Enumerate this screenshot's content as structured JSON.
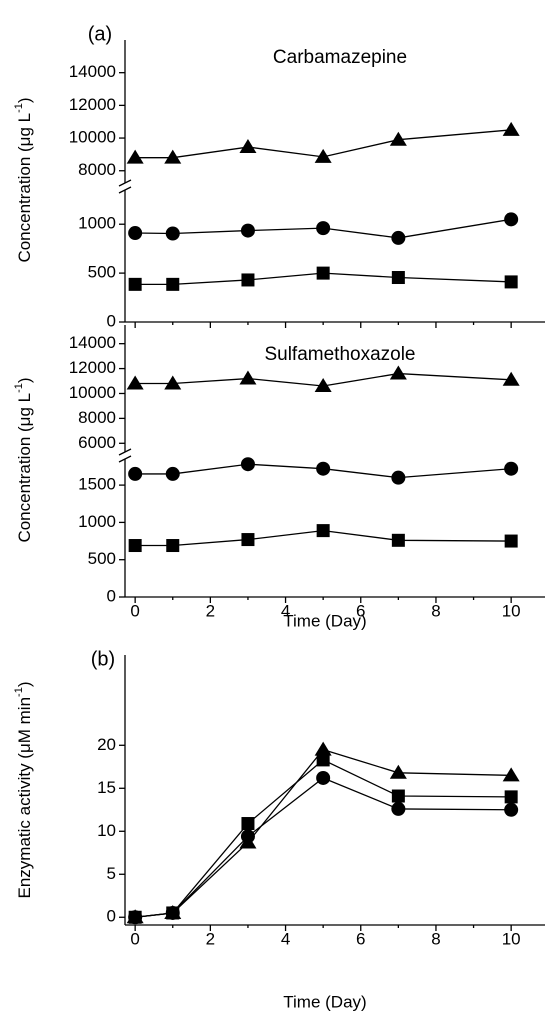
{
  "chart_data": [
    {
      "type": "line",
      "panel_label": "(a)",
      "title": "Carbamazepine",
      "ylabel": {
        "text": "Concentration (μg L",
        "sup": "-1",
        "end": ")"
      },
      "x": [
        0,
        1,
        3,
        5,
        7,
        10
      ],
      "xlim": [
        -0.27,
        10.9
      ],
      "xticks": [
        0,
        2,
        4,
        6,
        8,
        10
      ],
      "show_xtick_labels": false,
      "ylim": [
        0,
        1350
      ],
      "yticks": [
        0,
        500,
        1000
      ],
      "y2lim": [
        7250,
        16000
      ],
      "y2ticks": [
        8000,
        10000,
        12000,
        14000
      ],
      "series": [
        {
          "marker": "triangle",
          "color": "#000000",
          "axis": "y2",
          "values": [
            8800,
            8800,
            9450,
            8850,
            9900,
            10500
          ]
        },
        {
          "marker": "circle",
          "color": "#000000",
          "values": [
            910,
            905,
            935,
            960,
            860,
            1050
          ]
        },
        {
          "marker": "square",
          "color": "#000000",
          "values": [
            385,
            385,
            430,
            500,
            455,
            410
          ]
        }
      ]
    },
    {
      "type": "line",
      "title": "Sulfamethoxazole",
      "xlabel": "Time (Day)",
      "ylabel": {
        "text": "Concentration (μg L",
        "sup": "-1",
        "end": ")"
      },
      "x": [
        0,
        1,
        3,
        5,
        7,
        10
      ],
      "xlim": [
        -0.27,
        10.9
      ],
      "xticks": [
        0,
        2,
        4,
        6,
        8,
        10
      ],
      "show_xtick_labels": true,
      "ylim": [
        0,
        1850
      ],
      "yticks": [
        0,
        500,
        1000,
        1500
      ],
      "y2lim": [
        5300,
        15500
      ],
      "y2ticks": [
        6000,
        8000,
        10000,
        12000,
        14000
      ],
      "series": [
        {
          "marker": "triangle",
          "color": "#000000",
          "axis": "y2",
          "values": [
            10800,
            10800,
            11200,
            10600,
            11600,
            11100
          ]
        },
        {
          "marker": "circle",
          "color": "#000000",
          "values": [
            1650,
            1650,
            1780,
            1720,
            1600,
            1720
          ]
        },
        {
          "marker": "square",
          "color": "#000000",
          "values": [
            690,
            690,
            770,
            890,
            760,
            750
          ]
        }
      ]
    },
    {
      "type": "line",
      "panel_label": "(b)",
      "xlabel": "Time (Day)",
      "ylabel": {
        "text": "Enzymatic activity (μM min",
        "sup": "-1",
        "end": ")"
      },
      "x": [
        0,
        1,
        3,
        5,
        7,
        10
      ],
      "xlim": [
        -0.27,
        10.9
      ],
      "xticks": [
        0,
        2,
        4,
        6,
        8,
        10
      ],
      "show_xtick_labels": true,
      "ylim": [
        -0.9,
        30.5
      ],
      "yticks": [
        0,
        5,
        10,
        15,
        20
      ],
      "series": [
        {
          "marker": "square",
          "color": "#000000",
          "values": [
            0,
            0.5,
            10.9,
            18.3,
            14.1,
            14.0
          ]
        },
        {
          "marker": "circle",
          "color": "#000000",
          "values": [
            0,
            0.5,
            9.4,
            16.2,
            12.6,
            12.5
          ]
        },
        {
          "marker": "triangle",
          "color": "#000000",
          "values": [
            0,
            0.5,
            8.7,
            19.5,
            16.8,
            16.5
          ]
        }
      ]
    }
  ]
}
